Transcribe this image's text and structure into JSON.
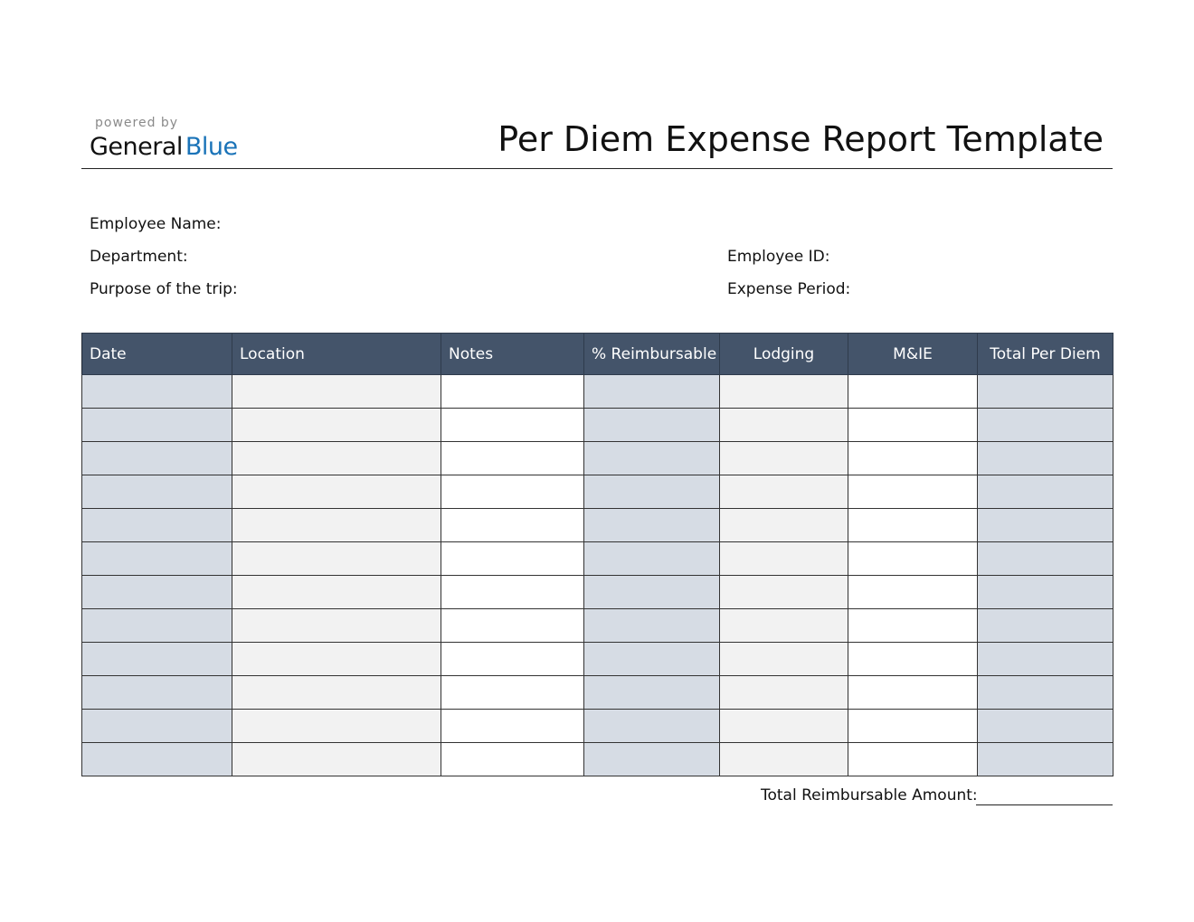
{
  "brand": {
    "powered_by": "powered by",
    "name_part1": "General",
    "name_part2": "Blue",
    "accent": "#1a73b8"
  },
  "title": "Per Diem Expense Report Template",
  "fields": {
    "employee_name": "Employee Name:",
    "department": "Department:",
    "purpose": "Purpose of the trip:",
    "employee_id": "Employee ID:",
    "expense_period": "Expense Period:"
  },
  "table": {
    "header_color": "#44546A",
    "columns": [
      "Date",
      "Location",
      "Notes",
      "% Reimbursable",
      "Lodging",
      "M&IE",
      "Total Per Diem"
    ],
    "empty_rows": 12
  },
  "footer": {
    "total_label": "Total Reimbursable Amount:"
  }
}
